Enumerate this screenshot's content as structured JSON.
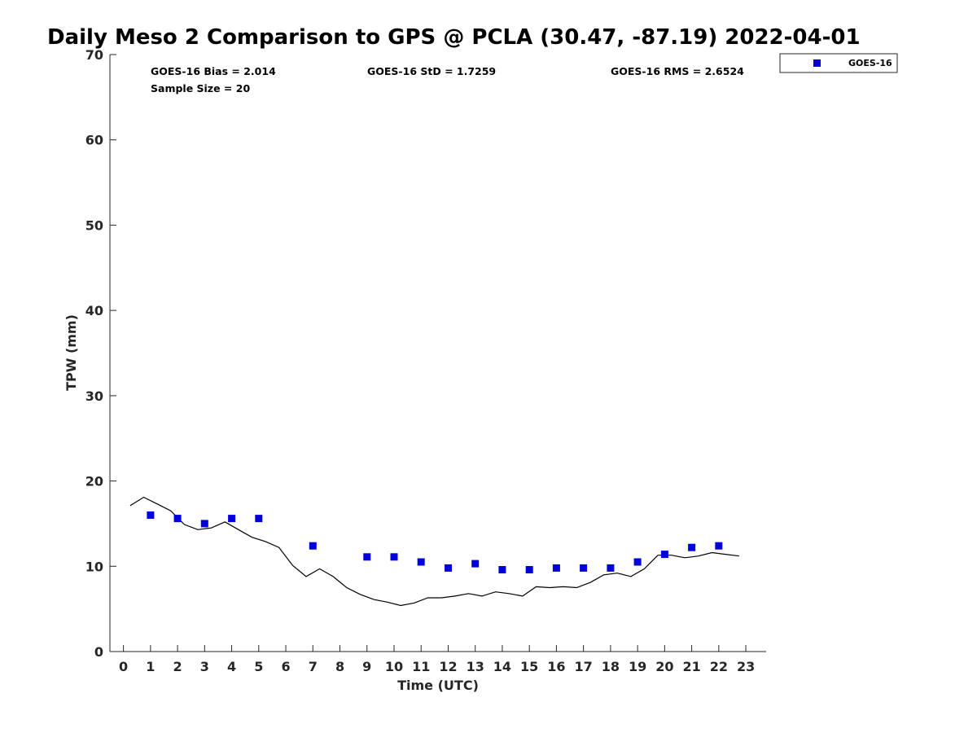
{
  "chart_data": {
    "type": "scatter",
    "title": "Daily Meso 2 Comparison to GPS @ PCLA (30.47, -87.19) 2022-04-01",
    "xlabel": "Time (UTC)",
    "ylabel": "TPW (mm)",
    "xlim": [
      -0.5,
      23.75
    ],
    "ylim": [
      0,
      70
    ],
    "x_ticks": [
      0,
      1,
      2,
      3,
      4,
      5,
      6,
      7,
      8,
      9,
      10,
      11,
      12,
      13,
      14,
      15,
      16,
      17,
      18,
      19,
      20,
      21,
      22,
      23
    ],
    "y_ticks": [
      0,
      10,
      20,
      30,
      40,
      50,
      60,
      70
    ],
    "grid": false,
    "legend_position": "top-right",
    "stats": [
      {
        "text": "GOES-16 Bias = 2.014"
      },
      {
        "text": "GOES-16 StD = 1.7259"
      },
      {
        "text": "GOES-16 RMS = 2.6524"
      },
      {
        "text": "Sample Size = 20"
      }
    ],
    "series": [
      {
        "name": "GOES-16",
        "kind": "scatter",
        "marker": "square",
        "color": "#0000dd",
        "x": [
          1,
          2,
          3,
          4,
          5,
          7,
          9,
          10,
          11,
          12,
          13,
          14,
          15,
          16,
          17,
          18,
          19,
          20,
          21,
          22
        ],
        "y": [
          16.0,
          15.6,
          15.0,
          15.6,
          15.6,
          12.4,
          11.1,
          11.1,
          10.5,
          9.8,
          10.3,
          9.6,
          9.6,
          9.8,
          9.8,
          9.8,
          10.5,
          11.4,
          12.2,
          12.4
        ]
      },
      {
        "kind": "line",
        "color": "#000000",
        "x": [
          0.25,
          0.75,
          1.25,
          1.75,
          2.25,
          2.75,
          3.25,
          3.75,
          4.25,
          4.75,
          5.25,
          5.75,
          6.25,
          6.75,
          7.25,
          7.75,
          8.25,
          8.75,
          9.25,
          9.75,
          10.25,
          10.75,
          11.25,
          11.75,
          12.25,
          12.75,
          13.25,
          13.75,
          14.25,
          14.75,
          15.25,
          15.75,
          16.25,
          16.75,
          17.25,
          17.75,
          18.25,
          18.75,
          19.25,
          19.75,
          20.25,
          20.75,
          21.25,
          21.75,
          22.25,
          22.75
        ],
        "y": [
          17.1,
          18.1,
          17.3,
          16.5,
          14.9,
          14.3,
          14.5,
          15.2,
          14.3,
          13.4,
          12.9,
          12.2,
          10.1,
          8.8,
          9.7,
          8.8,
          7.5,
          6.7,
          6.1,
          5.8,
          5.4,
          5.7,
          6.3,
          6.3,
          6.5,
          6.8,
          6.5,
          7.0,
          6.8,
          6.5,
          7.6,
          7.5,
          7.6,
          7.5,
          8.1,
          9.0,
          9.2,
          8.8,
          9.7,
          11.3,
          11.3,
          11.0,
          11.2,
          11.6,
          11.4,
          11.2
        ]
      }
    ]
  }
}
